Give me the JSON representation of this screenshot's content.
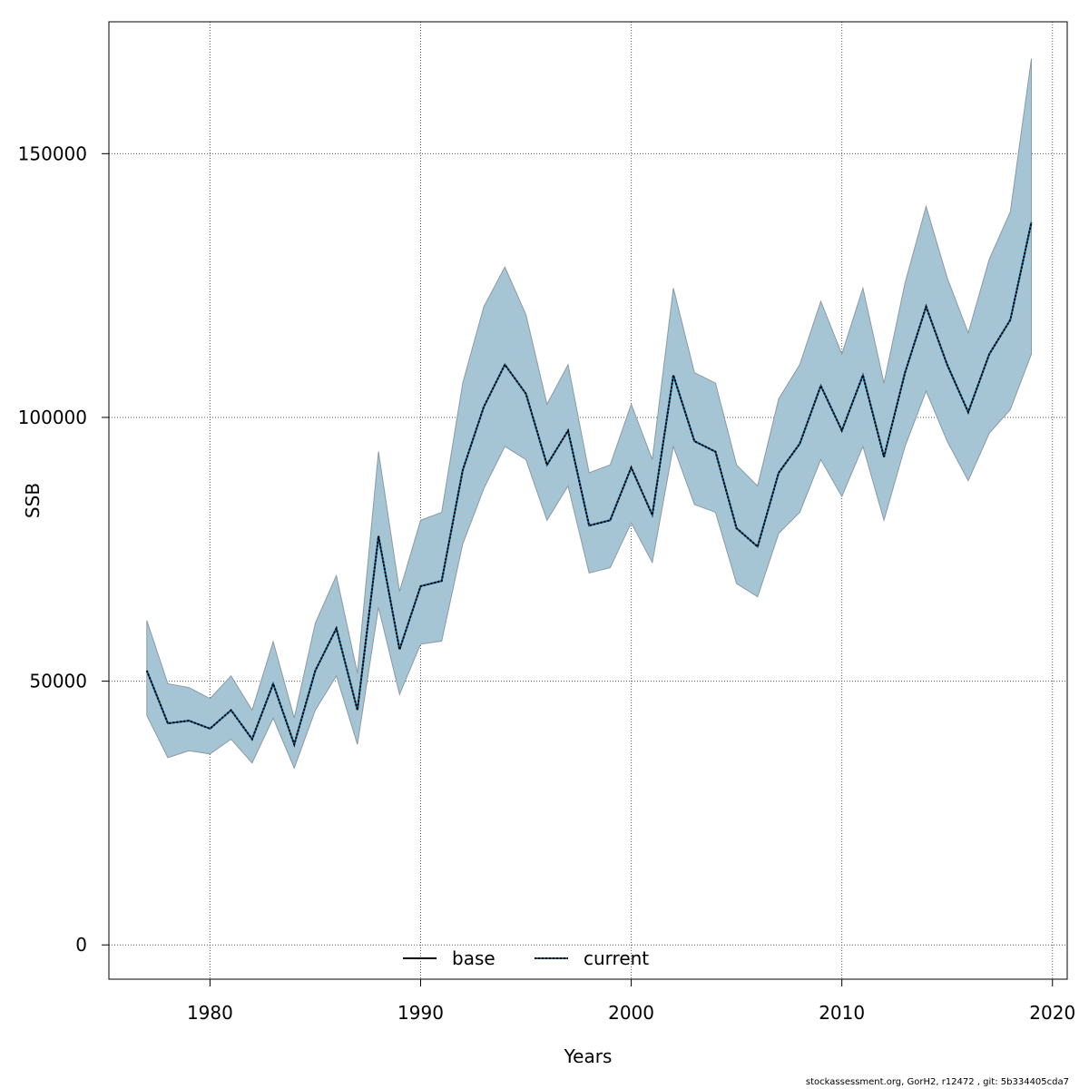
{
  "chart_data": {
    "type": "area",
    "xlabel": "Years",
    "ylabel": "SSB",
    "xlim": [
      1975.2,
      2020.7
    ],
    "ylim": [
      -6500,
      175000
    ],
    "x_ticks": [
      1980,
      1990,
      2000,
      2010,
      2020
    ],
    "y_ticks": [
      0,
      50000,
      100000,
      150000
    ],
    "x_tick_labels": [
      "1980",
      "1990",
      "2000",
      "2010",
      "2020"
    ],
    "y_tick_labels": [
      "0",
      "50000",
      "100000",
      "150000"
    ],
    "grid": true,
    "band_color": "#a5c4d4",
    "band_edge_color": "#8a9ba5",
    "current_line_color": "#000000",
    "current_line_shadow": "#0a5a8a",
    "x": [
      1977,
      1978,
      1979,
      1980,
      1981,
      1982,
      1983,
      1984,
      1985,
      1986,
      1987,
      1988,
      1989,
      1990,
      1991,
      1992,
      1993,
      1994,
      1995,
      1996,
      1997,
      1998,
      1999,
      2000,
      2001,
      2002,
      2003,
      2004,
      2005,
      2006,
      2007,
      2008,
      2009,
      2010,
      2011,
      2012,
      2013,
      2014,
      2015,
      2016,
      2017,
      2018,
      2019
    ],
    "series": [
      {
        "name": "current",
        "style": "dotted",
        "values": [
          52000,
          42000,
          42500,
          41000,
          44500,
          39000,
          49500,
          38000,
          52000,
          60000,
          44500,
          77500,
          56000,
          68000,
          69000,
          90000,
          102000,
          110000,
          104500,
          91000,
          97500,
          79500,
          80500,
          90500,
          81500,
          108000,
          95500,
          93500,
          79000,
          75500,
          89500,
          95000,
          106000,
          97500,
          108000,
          92500,
          108500,
          121000,
          110000,
          101000,
          112000,
          118500,
          137000
        ]
      }
    ],
    "band": {
      "name": "confidence interval",
      "lower": [
        43500,
        35500,
        36800,
        36200,
        39000,
        34500,
        43000,
        33500,
        44500,
        51000,
        38000,
        64000,
        47500,
        57000,
        57600,
        76000,
        86500,
        94500,
        92000,
        80500,
        87000,
        70500,
        71500,
        80000,
        72500,
        94500,
        83500,
        82000,
        68500,
        66000,
        78000,
        82000,
        92000,
        85000,
        94500,
        80500,
        94500,
        105000,
        95500,
        88000,
        97000,
        101500,
        112000
      ],
      "upper": [
        61500,
        49500,
        48800,
        46700,
        51000,
        44500,
        57500,
        43000,
        61000,
        70000,
        51500,
        93500,
        67000,
        80500,
        82000,
        106500,
        121000,
        128500,
        119500,
        102500,
        110000,
        89500,
        91000,
        102500,
        92000,
        124500,
        108500,
        106500,
        91000,
        87000,
        103500,
        110000,
        122000,
        112000,
        124500,
        106500,
        125500,
        140000,
        126500,
        116000,
        130000,
        139000,
        168000
      ]
    },
    "legend": [
      {
        "label": "base",
        "style": "solid",
        "color": "#000000"
      },
      {
        "label": "current",
        "style": "dotted",
        "color": "#0a5a8a"
      }
    ],
    "legend_position": "bottom-center"
  },
  "footer": {
    "text": "stockassessment.org, GorH2, r12472 , git: 5b334405cda7"
  }
}
